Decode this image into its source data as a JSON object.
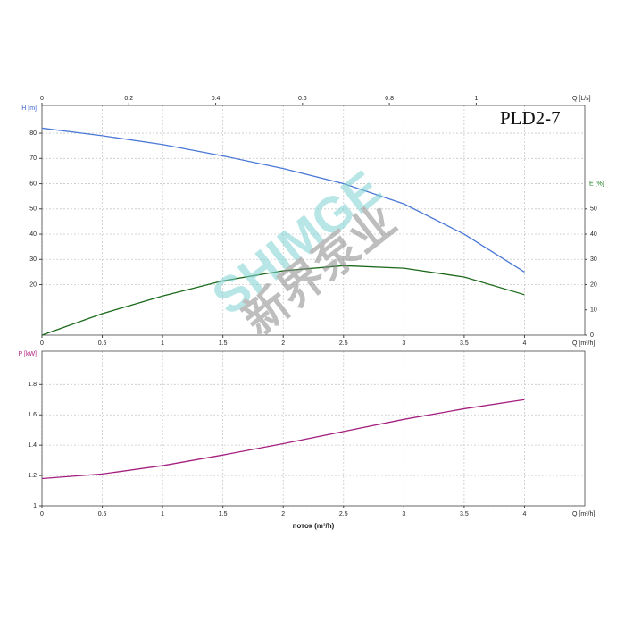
{
  "chart_data": [
    {
      "type": "line",
      "title": "PLD2-7",
      "x": [
        0,
        0.5,
        1,
        1.5,
        2,
        2.5,
        3,
        3.5,
        4
      ],
      "xlim": [
        0,
        4.5
      ],
      "xticks": [
        0,
        0.5,
        1,
        1.5,
        2,
        2.5,
        3,
        3.5,
        4
      ],
      "xlabel": "Q [m³/h]",
      "x2lim": [
        0,
        1.25
      ],
      "x2ticks": [
        0,
        0.2,
        0.4,
        0.6,
        0.8,
        1
      ],
      "x2label": "Q [L/s]",
      "ylim": [
        0,
        91
      ],
      "yticks": [
        20,
        30,
        40,
        50,
        60,
        70,
        80
      ],
      "ylabel": "H [m]",
      "ylabel_color": "#3a63c8",
      "y2lim": [
        0,
        91
      ],
      "y2ticks": [
        0,
        10,
        20,
        30,
        40,
        50
      ],
      "y2label": "E [%]",
      "y2label_color": "#1a7a1a",
      "grid": true,
      "series": [
        {
          "name": "H",
          "color": "#4a78d6",
          "values": [
            82,
            79,
            75.5,
            71,
            66,
            60,
            52,
            40,
            25
          ]
        },
        {
          "name": "E",
          "color": "#1b6a1b",
          "axis": "y2",
          "values": [
            0,
            8.5,
            15.5,
            21.5,
            25.5,
            27.5,
            26.5,
            23,
            16
          ]
        }
      ]
    },
    {
      "type": "line",
      "x": [
        0,
        0.5,
        1,
        1.5,
        2,
        2.5,
        3,
        3.5,
        4
      ],
      "xlim": [
        0,
        4.5
      ],
      "xticks": [
        0,
        0.5,
        1,
        1.5,
        2,
        2.5,
        3,
        3.5,
        4
      ],
      "xlabel": "Q [m³/h]",
      "xtitle": "поток (m³/h)",
      "ylim": [
        1,
        2.02
      ],
      "yticks": [
        1,
        1.2,
        1.4,
        1.6,
        1.8
      ],
      "ylabel": "P [kW]",
      "ylabel_color": "#b0207f",
      "grid": true,
      "series": [
        {
          "name": "P",
          "color": "#a4207f",
          "values": [
            1.18,
            1.21,
            1.265,
            1.335,
            1.41,
            1.49,
            1.57,
            1.64,
            1.7
          ]
        }
      ]
    }
  ],
  "watermark": {
    "brand": "SHIMGE",
    "chinese": "新界泵业"
  }
}
